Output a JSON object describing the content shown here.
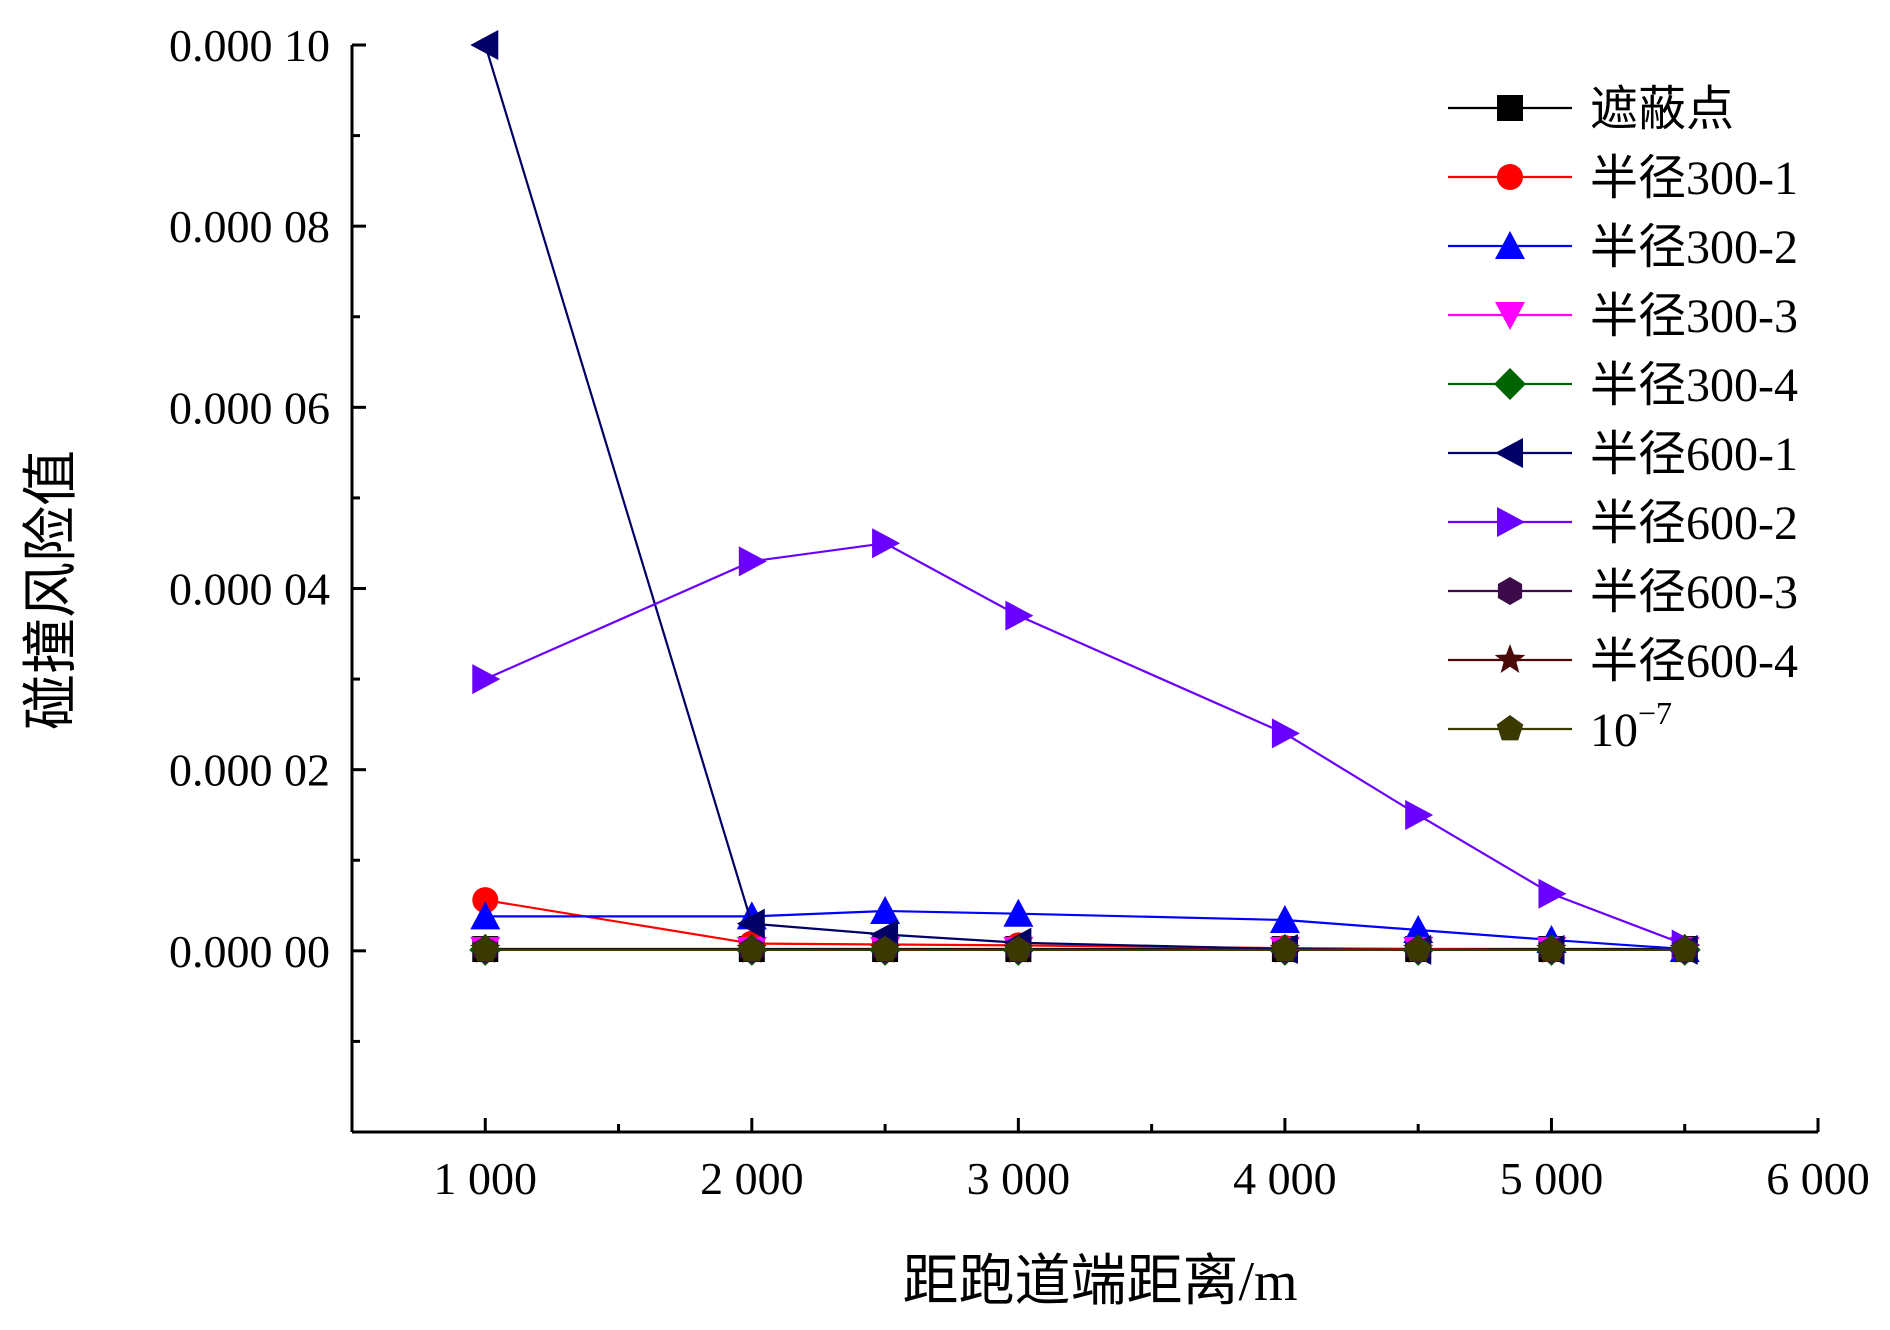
{
  "chart_data": {
    "type": "line",
    "title": "",
    "xlabel": "距跑道端距离/m",
    "ylabel": "碰撞风险值",
    "xlim": [
      500,
      6000
    ],
    "ylim": [
      -2e-05,
      0.0001
    ],
    "x_ticks": [
      1000,
      2000,
      3000,
      4000,
      5000,
      6000
    ],
    "x_tick_labels": [
      "1 000",
      "2 000",
      "3 000",
      "4 000",
      "5 000",
      "6 000"
    ],
    "y_ticks": [
      0,
      2e-05,
      4e-05,
      6e-05,
      8e-05,
      0.0001
    ],
    "y_tick_labels": [
      "0.000 00",
      "0.000 02",
      "0.000 04",
      "0.000 06",
      "0.000 08",
      "0.000 10"
    ],
    "grid": false,
    "legend_position": "top-right",
    "x": [
      1000,
      2000,
      2500,
      3000,
      4000,
      4500,
      5000,
      5500
    ],
    "series": [
      {
        "name": "遮蔽点",
        "color": "#000000",
        "marker": "square",
        "values": [
          2e-07,
          2e-07,
          2e-07,
          2e-07,
          2e-07,
          2e-07,
          2e-07,
          2e-07
        ]
      },
      {
        "name": "半径300-1",
        "color": "#ff0000",
        "marker": "circle",
        "values": [
          5.6e-06,
          8e-07,
          7e-07,
          6e-07,
          3e-07,
          2e-07,
          1e-07,
          1e-07
        ]
      },
      {
        "name": "半径300-2",
        "color": "#0000ff",
        "marker": "triangle-up",
        "values": [
          3.8e-06,
          3.8e-06,
          4.4e-06,
          4.1e-06,
          3.4e-06,
          2.3e-06,
          1.2e-06,
          2e-07
        ]
      },
      {
        "name": "半径300-3",
        "color": "#ff00ff",
        "marker": "triangle-down",
        "values": [
          1e-07,
          1e-07,
          1e-07,
          1e-07,
          1e-07,
          1e-07,
          1e-07,
          1e-07
        ]
      },
      {
        "name": "半径300-4",
        "color": "#006400",
        "marker": "diamond",
        "values": [
          1e-07,
          1e-07,
          1e-07,
          1e-07,
          1e-07,
          1e-07,
          1e-07,
          1e-07
        ]
      },
      {
        "name": "半径600-1",
        "color": "#000066",
        "marker": "triangle-left",
        "values": [
          0.0001,
          3e-06,
          1.8e-06,
          9e-07,
          2e-07,
          1e-07,
          1e-07,
          1e-07
        ]
      },
      {
        "name": "半径600-2",
        "color": "#6a00ff",
        "marker": "triangle-right",
        "values": [
          3e-05,
          4.3e-05,
          4.5e-05,
          3.7e-05,
          2.4e-05,
          1.5e-05,
          6.3e-06,
          7e-07
        ]
      },
      {
        "name": "半径600-3",
        "color": "#3d0a4a",
        "marker": "hexagon",
        "values": [
          1e-07,
          1e-07,
          1e-07,
          1e-07,
          1e-07,
          1e-07,
          1e-07,
          1e-07
        ]
      },
      {
        "name": "半径600-4",
        "color": "#4a0a0a",
        "marker": "star",
        "values": [
          1e-07,
          1e-07,
          1e-07,
          1e-07,
          1e-07,
          1e-07,
          1e-07,
          1e-07
        ]
      },
      {
        "name": "10",
        "name_superscript": "−7",
        "color": "#3a3a00",
        "marker": "pentagon",
        "values": [
          1e-07,
          1e-07,
          1e-07,
          1e-07,
          1e-07,
          1e-07,
          1e-07,
          1e-07
        ]
      }
    ]
  }
}
